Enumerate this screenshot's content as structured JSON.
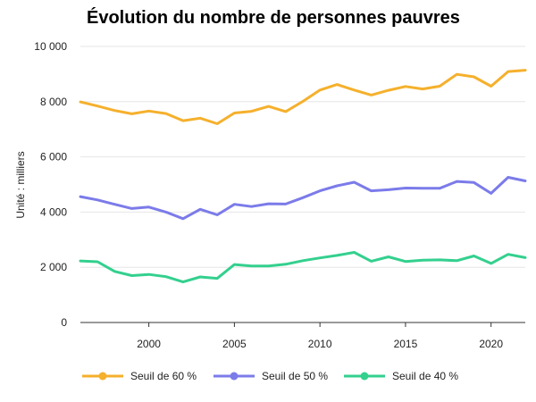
{
  "chart_data": {
    "type": "line",
    "title": "Évolution du nombre de personnes pauvres",
    "ylabel": "Unité : milliers",
    "xlabel": "",
    "ylim": [
      0,
      10000
    ],
    "xlim": [
      1996,
      2022
    ],
    "grid": true,
    "legend_position": "bottom",
    "y_ticks": [
      0,
      2000,
      4000,
      6000,
      8000,
      10000
    ],
    "y_tick_labels": [
      "0",
      "2 000",
      "4 000",
      "6 000",
      "8 000",
      "10 000"
    ],
    "x_ticks": [
      2000,
      2005,
      2010,
      2015,
      2020
    ],
    "x_tick_labels": [
      "2000",
      "2005",
      "2010",
      "2015",
      "2020"
    ],
    "x": [
      1996,
      1997,
      1998,
      1999,
      2000,
      2001,
      2002,
      2003,
      2004,
      2005,
      2006,
      2007,
      2008,
      2009,
      2010,
      2011,
      2012,
      2013,
      2014,
      2015,
      2016,
      2017,
      2018,
      2019,
      2020,
      2021,
      2022
    ],
    "series": [
      {
        "name": "Seuil de 60 %",
        "color": "#F5B02C",
        "values": [
          7990,
          7840,
          7680,
          7560,
          7660,
          7570,
          7310,
          7400,
          7200,
          7590,
          7650,
          7830,
          7640,
          8010,
          8420,
          8620,
          8420,
          8240,
          8410,
          8550,
          8460,
          8560,
          8990,
          8900,
          8560,
          9090,
          9140
        ]
      },
      {
        "name": "Seuil de 50 %",
        "color": "#7B7BEA",
        "values": [
          4560,
          4440,
          4280,
          4130,
          4180,
          4000,
          3760,
          4100,
          3900,
          4280,
          4200,
          4300,
          4290,
          4520,
          4770,
          4950,
          5080,
          4770,
          4810,
          4870,
          4860,
          4860,
          5110,
          5070,
          4680,
          5260,
          5130
        ]
      },
      {
        "name": "Seuil de 40 %",
        "color": "#33D08E",
        "values": [
          2230,
          2200,
          1850,
          1700,
          1740,
          1660,
          1470,
          1650,
          1600,
          2100,
          2050,
          2050,
          2110,
          2240,
          2340,
          2430,
          2540,
          2220,
          2380,
          2210,
          2260,
          2270,
          2240,
          2410,
          2140,
          2470,
          2350
        ]
      }
    ]
  }
}
